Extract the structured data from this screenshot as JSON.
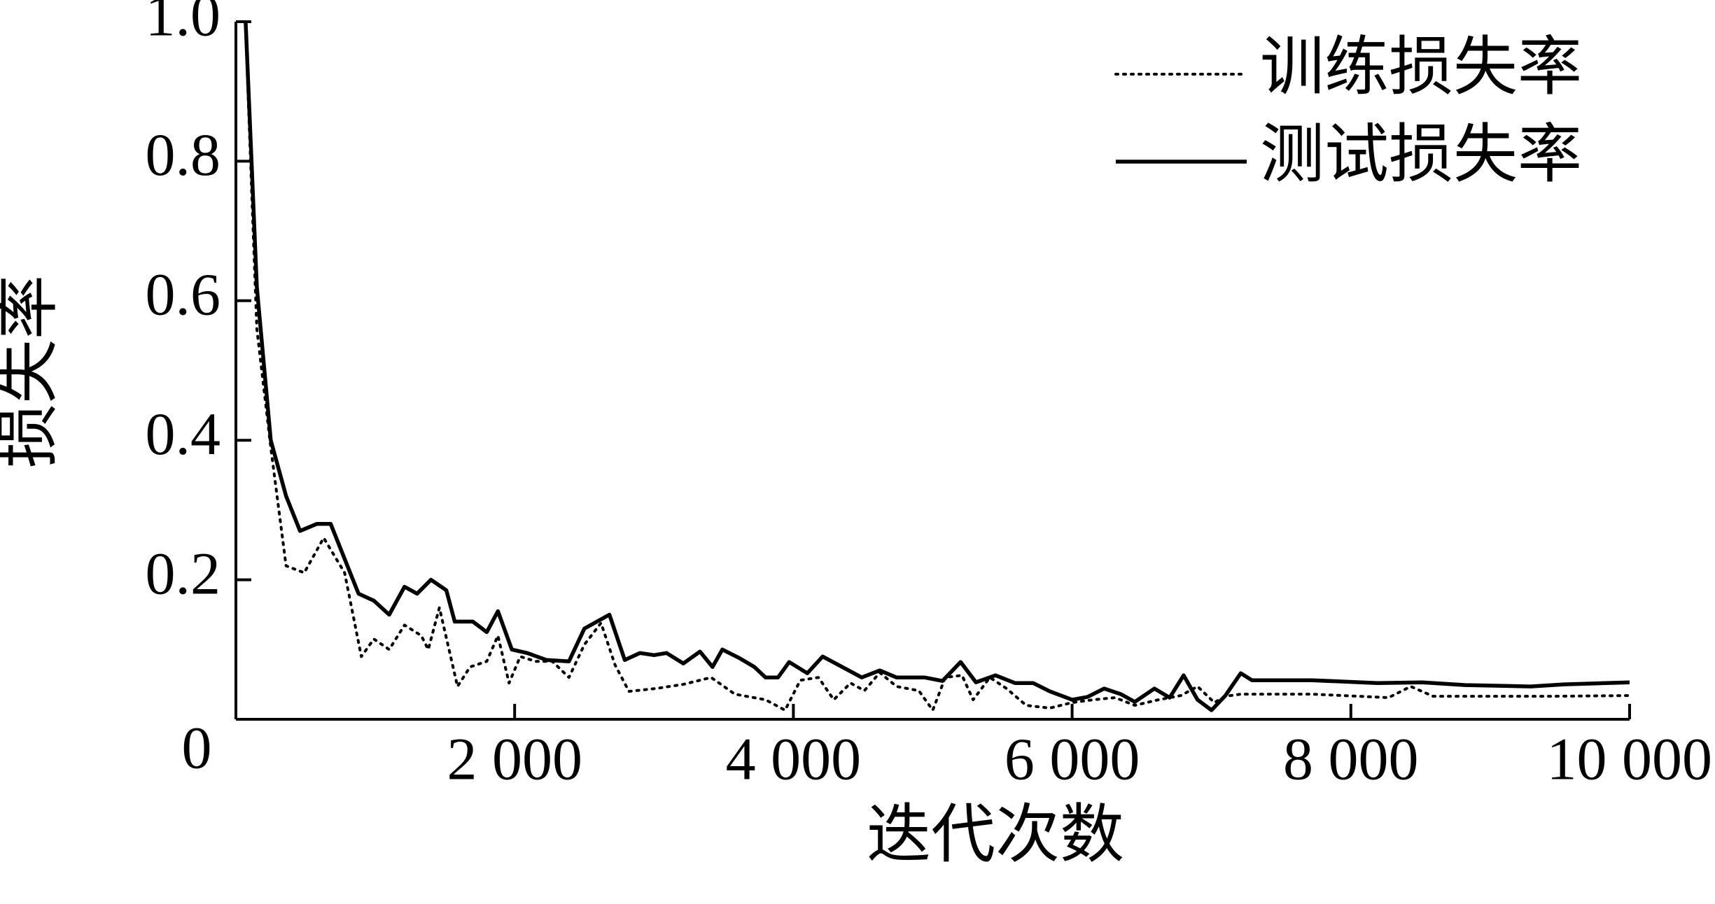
{
  "chart_data": {
    "type": "line",
    "x_label": "迭代次数",
    "y_label": "损失率",
    "xlim": [
      0,
      10000
    ],
    "ylim": [
      0,
      1
    ],
    "xticks": [
      0,
      {
        "value": 2000,
        "label": "2 000"
      },
      {
        "value": 4000,
        "label": "4 000"
      },
      {
        "value": 6000,
        "label": "6 000"
      },
      {
        "value": 8000,
        "label": "8 000"
      },
      {
        "value": 10000,
        "label": "10 000"
      }
    ],
    "yticks": [
      0.2,
      0.4,
      0.6,
      0.8,
      {
        "value": 1,
        "label": "1.0"
      }
    ],
    "legend": "upper right",
    "series": [
      {
        "name": "训练损失率",
        "color": "#000000",
        "style": "dotted",
        "x": [
          70,
          150,
          250,
          360,
          490,
          630,
          780,
          900,
          990,
          1100,
          1210,
          1330,
          1380,
          1460,
          1590,
          1680,
          1800,
          1880,
          1960,
          2040,
          2150,
          2270,
          2390,
          2500,
          2620,
          2720,
          2820,
          3010,
          3210,
          3410,
          3580,
          3800,
          3940,
          4050,
          4180,
          4290,
          4410,
          4510,
          4620,
          4740,
          4900,
          5000,
          5090,
          5210,
          5290,
          5410,
          5530,
          5670,
          5840,
          6000,
          6150,
          6310,
          6450,
          6620,
          6780,
          6900,
          7020,
          7100,
          7210,
          7720,
          8270,
          8430,
          8590,
          8980,
          9450,
          10000
        ],
        "values": [
          0.99,
          0.56,
          0.39,
          0.22,
          0.21,
          0.26,
          0.21,
          0.09,
          0.115,
          0.1,
          0.135,
          0.12,
          0.1,
          0.16,
          0.047,
          0.075,
          0.083,
          0.12,
          0.052,
          0.09,
          0.083,
          0.083,
          0.06,
          0.107,
          0.138,
          0.078,
          0.04,
          0.044,
          0.05,
          0.06,
          0.036,
          0.028,
          0.013,
          0.056,
          0.06,
          0.028,
          0.052,
          0.041,
          0.067,
          0.047,
          0.041,
          0.013,
          0.06,
          0.063,
          0.028,
          0.06,
          0.044,
          0.02,
          0.016,
          0.024,
          0.028,
          0.031,
          0.02,
          0.028,
          0.034,
          0.047,
          0.024,
          0.033,
          0.036,
          0.036,
          0.031,
          0.047,
          0.033,
          0.033,
          0.033,
          0.034
        ]
      },
      {
        "name": "测试损失率",
        "color": "#000000",
        "style": "solid",
        "x": [
          70,
          150,
          250,
          360,
          460,
          580,
          680,
          780,
          880,
          990,
          1100,
          1210,
          1300,
          1400,
          1510,
          1570,
          1700,
          1800,
          1880,
          1980,
          2090,
          2230,
          2390,
          2500,
          2680,
          2790,
          2900,
          3000,
          3090,
          3210,
          3330,
          3420,
          3490,
          3610,
          3720,
          3800,
          3890,
          3970,
          4100,
          4210,
          4350,
          4490,
          4620,
          4740,
          4940,
          5070,
          5200,
          5310,
          5450,
          5590,
          5720,
          5840,
          6000,
          6110,
          6230,
          6350,
          6450,
          6590,
          6700,
          6800,
          6900,
          7000,
          7100,
          7210,
          7290,
          7720,
          8190,
          8510,
          8820,
          9290,
          9530,
          10000
        ],
        "values": [
          1.0,
          0.62,
          0.4,
          0.32,
          0.27,
          0.28,
          0.28,
          0.23,
          0.18,
          0.17,
          0.15,
          0.19,
          0.18,
          0.2,
          0.185,
          0.14,
          0.14,
          0.125,
          0.155,
          0.1,
          0.095,
          0.085,
          0.083,
          0.13,
          0.15,
          0.085,
          0.095,
          0.092,
          0.095,
          0.08,
          0.097,
          0.075,
          0.1,
          0.088,
          0.075,
          0.06,
          0.06,
          0.082,
          0.066,
          0.09,
          0.075,
          0.06,
          0.07,
          0.06,
          0.06,
          0.055,
          0.082,
          0.053,
          0.063,
          0.052,
          0.052,
          0.04,
          0.028,
          0.032,
          0.044,
          0.036,
          0.025,
          0.044,
          0.031,
          0.063,
          0.028,
          0.013,
          0.034,
          0.066,
          0.056,
          0.056,
          0.052,
          0.053,
          0.049,
          0.047,
          0.05,
          0.053
        ]
      }
    ]
  }
}
